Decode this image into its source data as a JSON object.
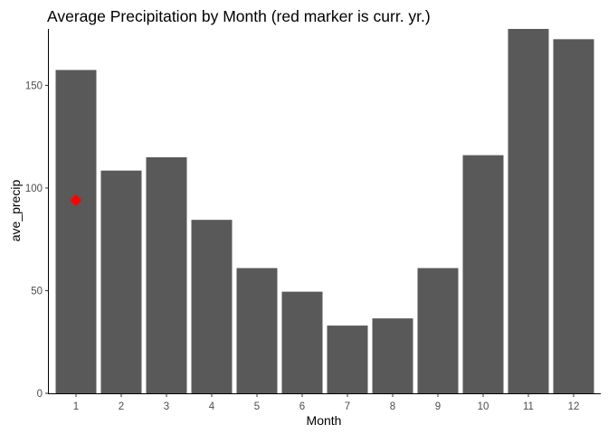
{
  "chart_data": {
    "type": "bar",
    "title": "Average Precipitation by Month (red marker is curr. yr.)",
    "xlabel": "Month",
    "ylabel": "ave_precip",
    "categories": [
      "1",
      "2",
      "3",
      "4",
      "5",
      "6",
      "7",
      "8",
      "9",
      "10",
      "11",
      "12"
    ],
    "values": [
      157.5,
      108.5,
      115,
      84.5,
      61,
      49.5,
      33,
      36.5,
      61,
      116,
      177.5,
      172.5
    ],
    "yticks": [
      0,
      50,
      100,
      150
    ],
    "ylim": [
      0,
      177.5
    ],
    "bar_color": "#595959",
    "grid": false,
    "markers": [
      {
        "category": "1",
        "value": 94,
        "shape": "diamond",
        "color": "#ff0000"
      }
    ]
  }
}
